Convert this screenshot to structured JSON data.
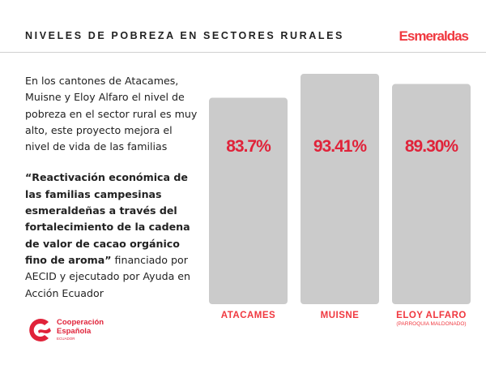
{
  "header": {
    "title": "NIVELES DE POBREZA EN SECTORES RURALES",
    "region": "Esmeraldas"
  },
  "body": {
    "intro": "En los cantones de Atacames, Muisne y Eloy Alfaro el nivel de pobreza en el sector rural es muy alto, este proyecto mejora el nivel de vida de las familias",
    "project_name": "“Reactivación económica de las familias campesinas esmeraldeñas a través del fortalecimiento de la cadena de valor de cacao orgánico fino de aroma”",
    "project_rest": " financiado por AECID y ejecutado por Ayuda en Acción Ecuador"
  },
  "chart_data": {
    "type": "bar",
    "categories": [
      "ATACAMES",
      "MUISNE",
      "ELOY ALFARO"
    ],
    "category_subtitles": [
      "",
      "",
      "(PARROQUIA MALDONADO)"
    ],
    "values": [
      83.7,
      93.41,
      89.3
    ],
    "data_labels": [
      "83.7%",
      "93.41%",
      "89.30%"
    ],
    "ylim": [
      0,
      100
    ],
    "grid": false,
    "colors": {
      "bar": "#cbcbcb",
      "value_label": "#e0233a",
      "category_label": "#f0383f"
    }
  },
  "logo": {
    "line1": "Cooperación",
    "line2": "Española",
    "line3": "ECUADOR"
  }
}
